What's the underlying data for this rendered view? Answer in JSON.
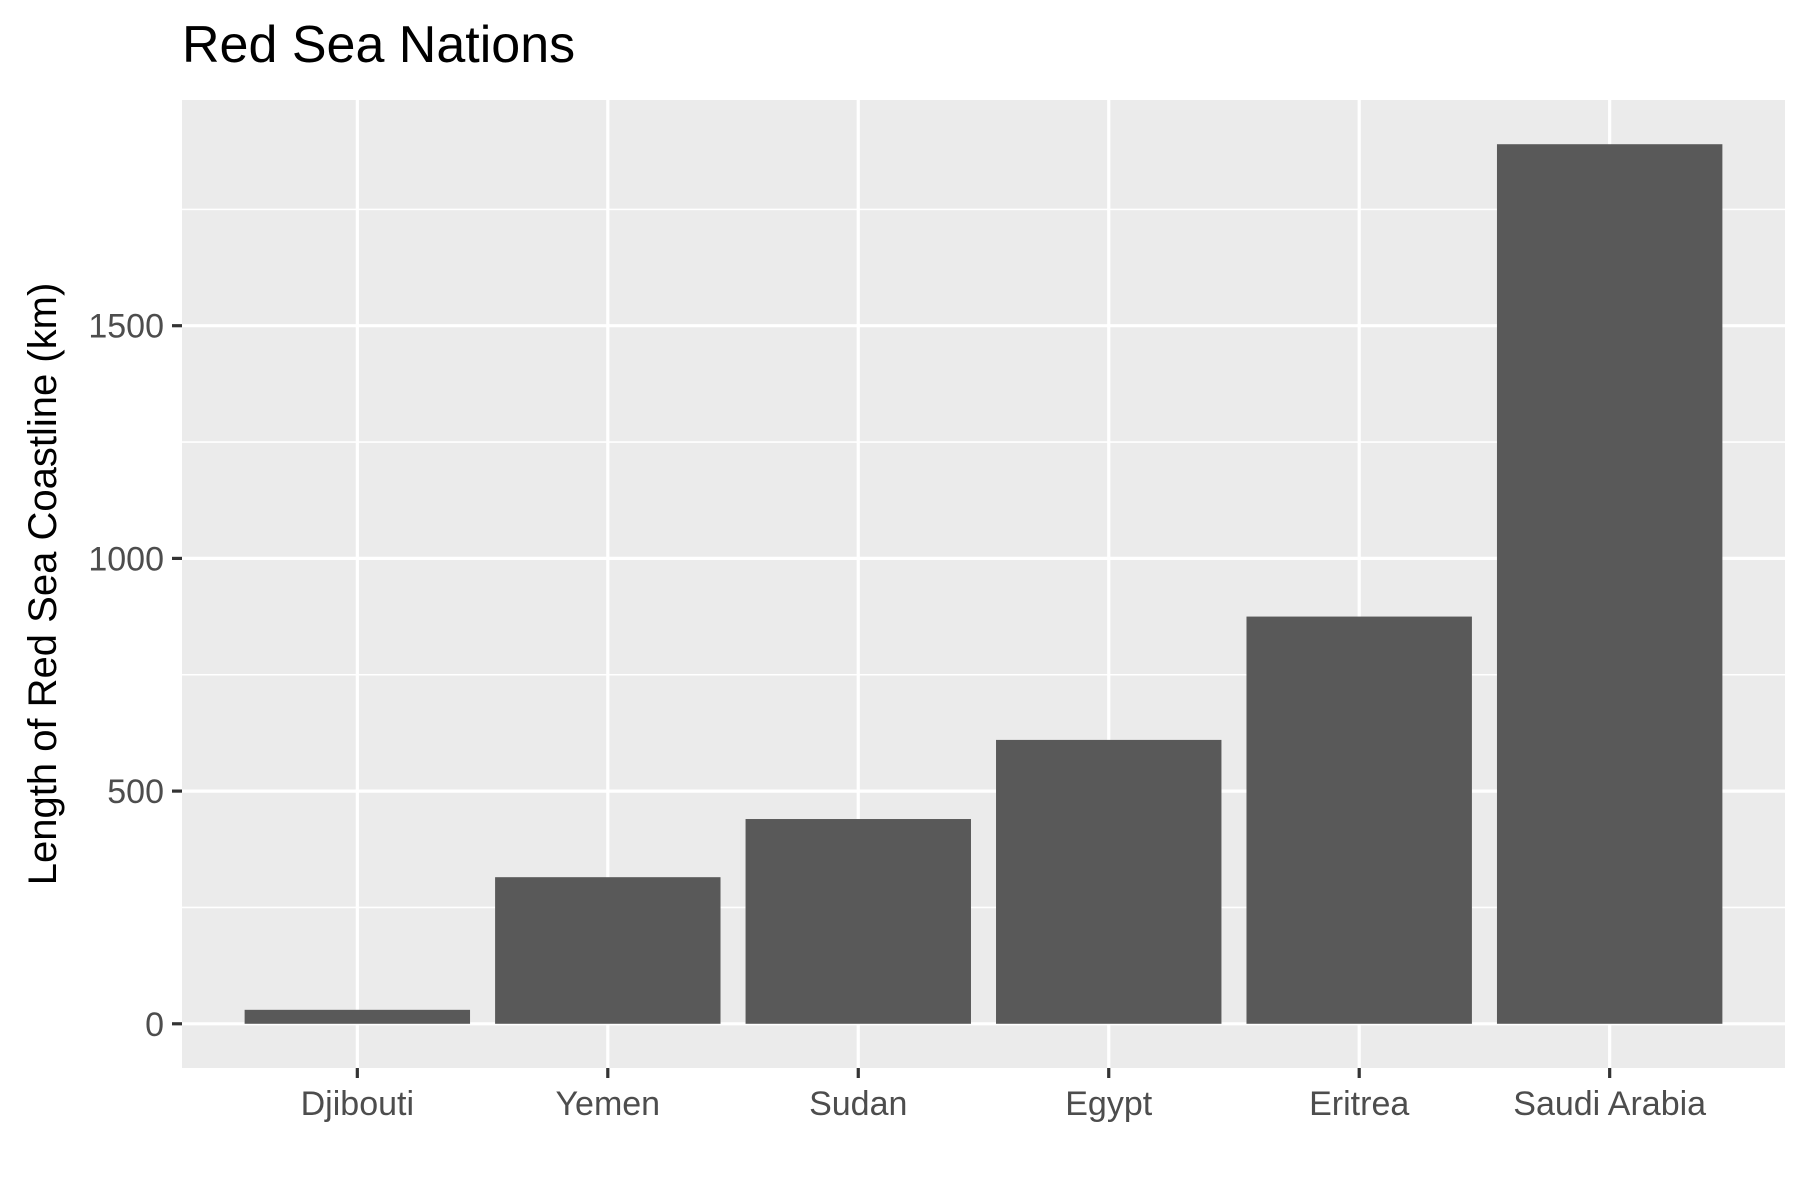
{
  "chart_data": {
    "type": "bar",
    "title": "Red Sea Nations",
    "xlabel": "",
    "ylabel": "Length of Red Sea Coastline (km)",
    "categories": [
      "Djibouti",
      "Yemen",
      "Sudan",
      "Egypt",
      "Eritrea",
      "Saudi Arabia"
    ],
    "values": [
      30,
      315,
      440,
      610,
      875,
      1890
    ],
    "ylim": [
      -95,
      1985
    ],
    "yticks": [
      0,
      500,
      1000,
      1500
    ],
    "y_minor_ticks": [
      250,
      750,
      1250,
      1750
    ],
    "grid": true,
    "legend": "none",
    "colors": {
      "bar": "#595959",
      "panel": "#ebebeb",
      "grid": "#ffffff",
      "tick_text": "#4d4d4d",
      "tick_mark": "#333333"
    }
  }
}
